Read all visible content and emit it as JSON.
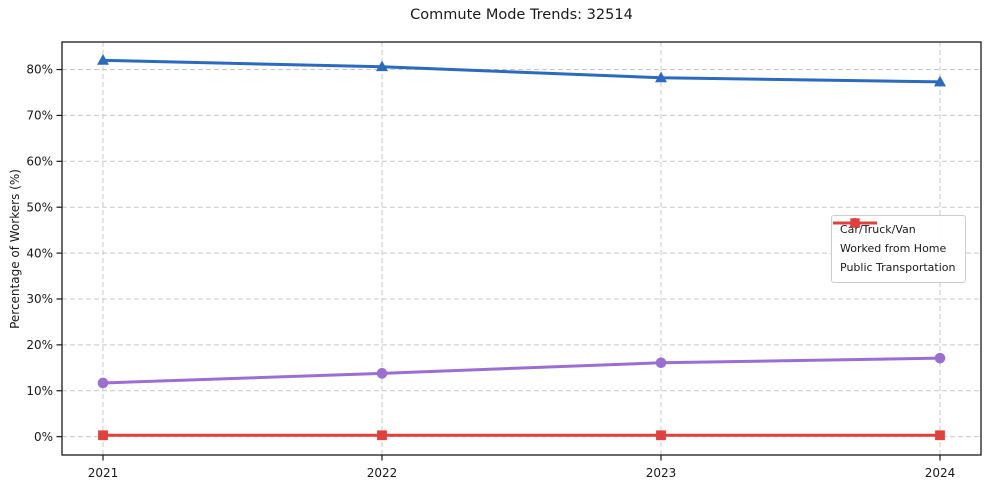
{
  "figure": {
    "background": "#ffffff"
  },
  "chart_data": {
    "type": "line",
    "title": "Commute Mode Trends: 32514",
    "xlabel": "",
    "ylabel": "Percentage of Workers (%)",
    "categories": [
      "2021",
      "2022",
      "2023",
      "2024"
    ],
    "series": [
      {
        "name": "Car/Truck/Van",
        "color": "#2b6abd",
        "marker": "triangle",
        "values": [
          82.0,
          80.6,
          78.2,
          77.3
        ]
      },
      {
        "name": "Worked from Home",
        "color": "#9b6fd2",
        "marker": "circle",
        "values": [
          11.7,
          13.8,
          16.1,
          17.1
        ]
      },
      {
        "name": "Public Transportation",
        "color": "#e0413c",
        "marker": "square",
        "values": [
          0.3,
          0.3,
          0.3,
          0.3
        ]
      }
    ],
    "ylim": [
      -4,
      86
    ],
    "ytick_values": [
      0,
      10,
      20,
      30,
      40,
      50,
      60,
      70,
      80
    ],
    "ytick_labels": [
      "0%",
      "10%",
      "20%",
      "30%",
      "40%",
      "50%",
      "60%",
      "70%",
      "80%"
    ],
    "grid": true,
    "grid_style": "dashed",
    "legend_position": "center-right",
    "style": {
      "grid_color": "#c9c9c9",
      "axis_color": "#1a1a1a",
      "text_color": "#1a1a1a"
    }
  }
}
